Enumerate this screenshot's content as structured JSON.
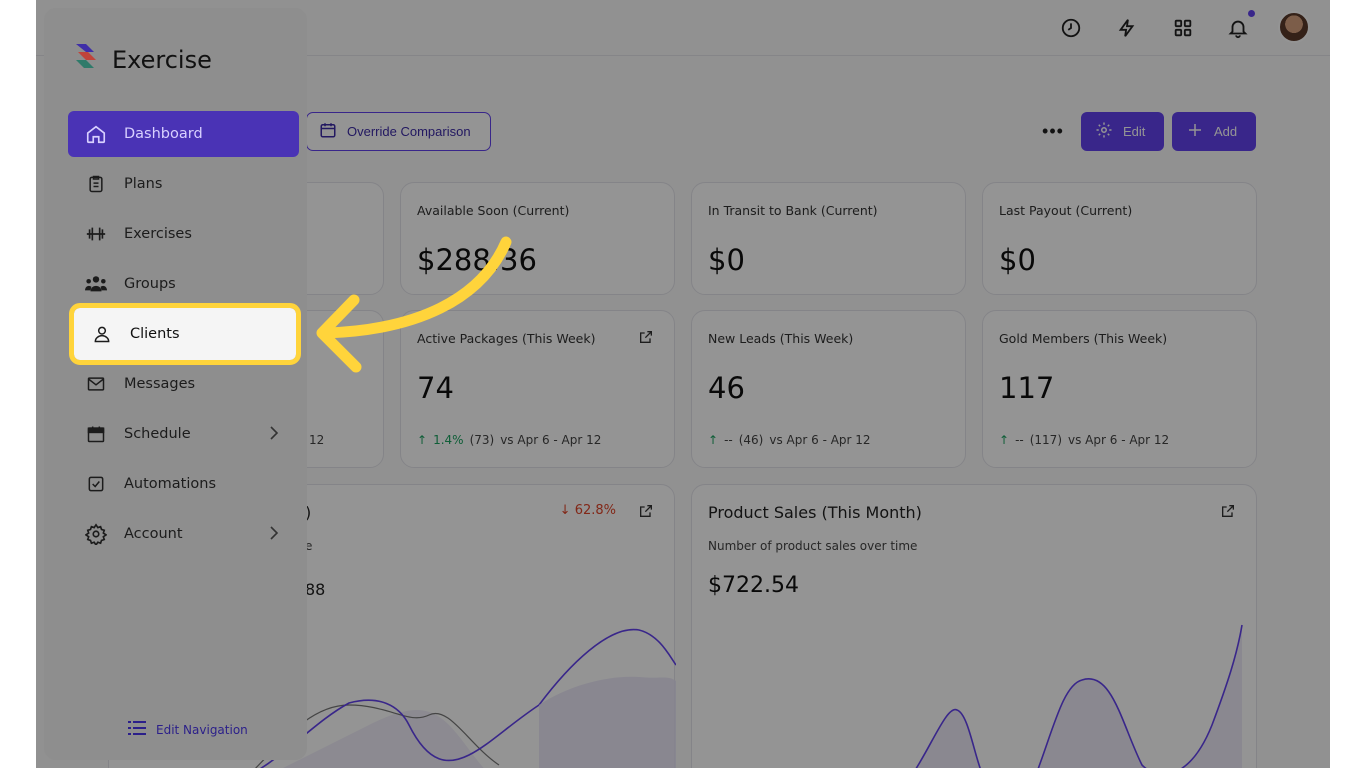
{
  "app": {
    "title": "Exercise"
  },
  "sidebar": {
    "items": [
      {
        "label": "Dashboard",
        "icon": "home-icon"
      },
      {
        "label": "Plans",
        "icon": "clipboard-icon"
      },
      {
        "label": "Exercises",
        "icon": "dumbbell-icon"
      },
      {
        "label": "Groups",
        "icon": "users-icon"
      },
      {
        "label": "Clients",
        "icon": "user-icon"
      },
      {
        "label": "Messages",
        "icon": "mail-icon"
      },
      {
        "label": "Schedule",
        "icon": "calendar-icon"
      },
      {
        "label": "Automations",
        "icon": "checkbox-icon"
      },
      {
        "label": "Account",
        "icon": "gear-icon"
      }
    ],
    "edit_nav_label": "Edit Navigation"
  },
  "toolbar": {
    "override_label": "Override Comparison",
    "edit_label": "Edit",
    "add_label": "Add"
  },
  "cards_row1": [
    {
      "label": "Available Soon (Current)",
      "value": "$288.36"
    },
    {
      "label": "In Transit to Bank (Current)",
      "value": "$0"
    },
    {
      "label": "Last Payout (Current)",
      "value": "$0"
    }
  ],
  "cards_row2": [
    {
      "label": "Active Packages (This Week)",
      "value": "74",
      "pct": "1.4%",
      "prev": "(73)",
      "range": "vs Apr 6 - Apr 12"
    },
    {
      "label": "New Leads (This Week)",
      "value": "46",
      "pct": "--",
      "prev": "(46)",
      "range": "vs Apr 6 - Apr 12"
    },
    {
      "label": "Gold Members (This Week)",
      "value": "117",
      "pct": "--",
      "prev": "(117)",
      "range": "vs Apr 6 - Apr 12"
    }
  ],
  "partial_left": {
    "range_tail": "12",
    "paren": ")",
    "sub_tail": "e",
    "val_tail": "88"
  },
  "left_chart": {
    "change": "62.8%"
  },
  "product_chart": {
    "title": "Product Sales (This Month)",
    "subtitle": "Number of product sales over time",
    "value": "$722.54"
  },
  "colors": {
    "accent": "#6243ee",
    "highlight": "#ffd43b",
    "up": "#1aa260",
    "down": "#e0452a"
  }
}
